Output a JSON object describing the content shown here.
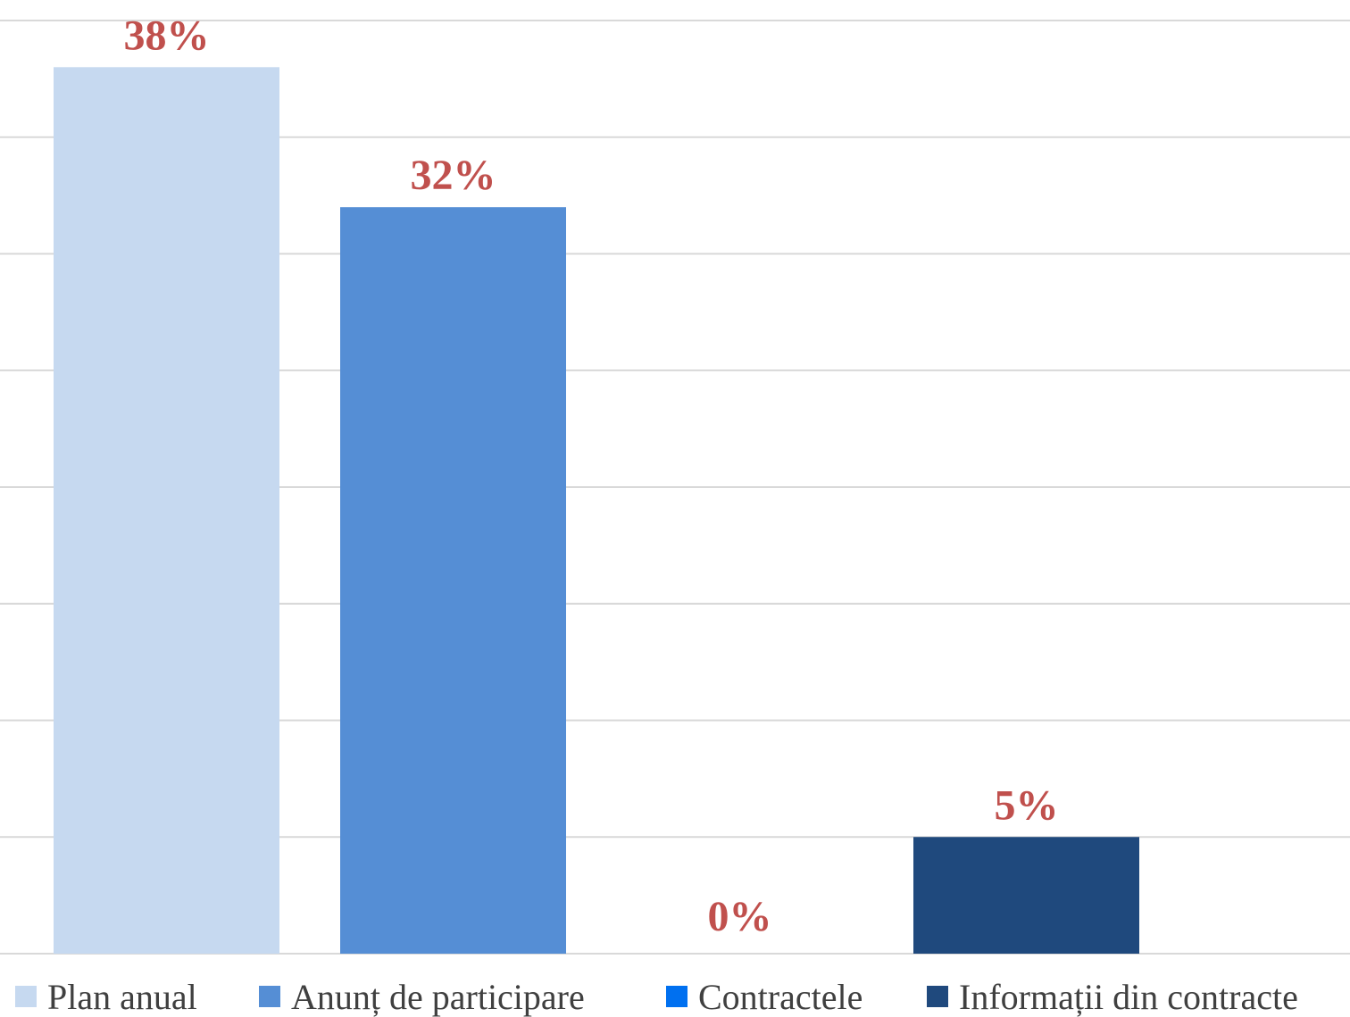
{
  "chart_data": {
    "type": "bar",
    "categories": [
      "Plan anual",
      "Anunț de participare",
      "Contractele",
      "Informații din contracte"
    ],
    "values": [
      38,
      32,
      0,
      5
    ],
    "value_labels": [
      "38%",
      "32%",
      "0%",
      "5%"
    ],
    "colors": [
      "#c6d9f0",
      "#558ed5",
      "#0070f0",
      "#1f497d"
    ],
    "ylim": [
      0,
      40
    ],
    "grid": true,
    "legend": "bottom",
    "data_label_color": "#c0504d",
    "gridline_color": "#d9d9d9"
  }
}
